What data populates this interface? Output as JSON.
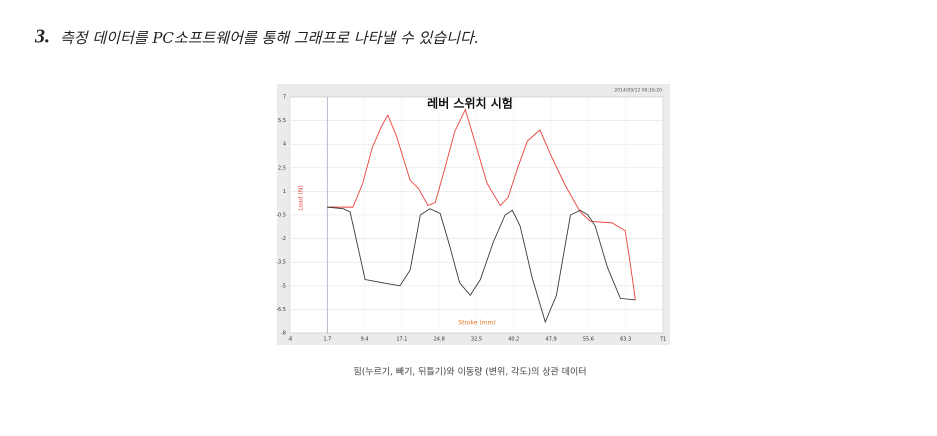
{
  "header": {
    "number": "3.",
    "title": "측정 데이터를 PC소프트웨어를 통해 그래프로 나타낼 수 있습니다."
  },
  "chart_data": {
    "type": "line",
    "title": "레버 스위치 시험",
    "timestamp": "2014/09/12 00:16:20",
    "x_label": "Stroke (mm)",
    "y_label": "Load (N)",
    "xlim": [
      -6,
      71
    ],
    "xticks": [
      -6,
      1.7,
      9.4,
      17.1,
      24.8,
      32.5,
      40.2,
      47.9,
      55.6,
      63.3,
      71
    ],
    "ylim": [
      -8,
      7
    ],
    "yticks": [
      7,
      5.5,
      4,
      2.5,
      1,
      -0.5,
      -2,
      -3.5,
      -5,
      -6.5,
      -8
    ],
    "grid": true,
    "marker_x": 1.7,
    "series": [
      {
        "color": "#e8423a",
        "x": [
          1.7,
          5,
          7,
          9,
          11,
          13,
          14.2,
          16,
          18.8,
          20.5,
          22.5,
          24,
          26,
          28,
          30.2,
          32.5,
          34.7,
          37.4,
          39,
          41,
          43,
          45.6,
          48,
          50.8,
          53.9,
          56,
          60.5,
          63.2,
          64.2,
          65.3
        ],
        "values": [
          0,
          0,
          0,
          1.5,
          3.8,
          5.2,
          5.85,
          4.5,
          1.7,
          1.2,
          0.1,
          0.3,
          2.5,
          4.8,
          6.2,
          3.8,
          1.5,
          0.1,
          0.6,
          2.5,
          4.2,
          4.9,
          3.2,
          1.4,
          -0.3,
          -0.9,
          -1,
          -1.5,
          -3.5,
          -5.9
        ]
      },
      {
        "color": "#3a3a3a",
        "x": [
          1.7,
          5,
          6.4,
          8,
          9.5,
          13,
          16.7,
          18.8,
          20.9,
          22.9,
          25,
          27,
          29,
          31.2,
          33.3,
          36,
          38.4,
          39.9,
          41.5,
          44,
          46.7,
          49,
          51.9,
          53.9,
          55.5,
          57,
          59.5,
          62.2,
          65.3
        ],
        "values": [
          0,
          -0.1,
          -0.3,
          -2.5,
          -4.6,
          -4.8,
          -5,
          -4,
          -0.5,
          -0.1,
          -0.4,
          -2.5,
          -4.8,
          -5.6,
          -4.6,
          -2.2,
          -0.5,
          -0.2,
          -1.2,
          -4.5,
          -7.3,
          -5.6,
          -0.5,
          -0.2,
          -0.5,
          -1.2,
          -3.8,
          -5.8,
          -5.9
        ]
      }
    ]
  },
  "caption": "힘(누르기, 빼기, 뒤틀기)와 이동량 (변위, 각도)의 상관 데이터"
}
